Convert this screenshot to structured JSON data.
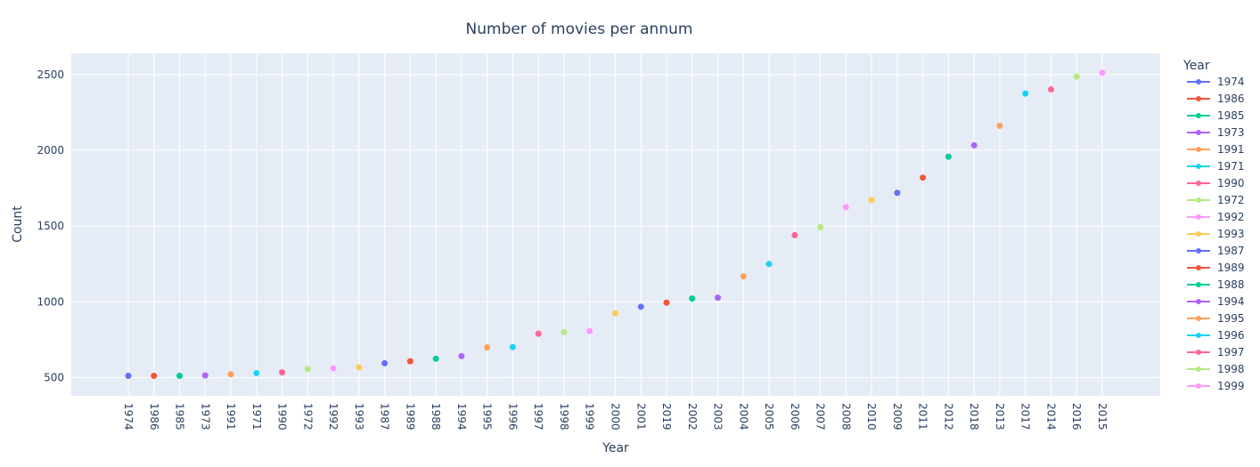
{
  "chart_data": {
    "type": "scatter",
    "title": "Number of movies per annum",
    "xlabel": "Year",
    "ylabel": "Count",
    "ylim": [
      380,
      2640
    ],
    "y_ticks": [
      500,
      1000,
      1500,
      2000,
      2500
    ],
    "grid": true,
    "legend": {
      "title": "Year",
      "placement": "right"
    },
    "colors": [
      "#636efa",
      "#EF553B",
      "#00cc96",
      "#ab63fa",
      "#FFA15A",
      "#19d3f3",
      "#FF6692",
      "#B6E880",
      "#FF97FF",
      "#FECB52"
    ],
    "points": [
      {
        "x": "1974",
        "y": 512
      },
      {
        "x": "1986",
        "y": 512
      },
      {
        "x": "1985",
        "y": 512
      },
      {
        "x": "1973",
        "y": 515
      },
      {
        "x": "1991",
        "y": 522
      },
      {
        "x": "1971",
        "y": 530
      },
      {
        "x": "1990",
        "y": 535
      },
      {
        "x": "1972",
        "y": 557
      },
      {
        "x": "1992",
        "y": 562
      },
      {
        "x": "1993",
        "y": 568
      },
      {
        "x": "1987",
        "y": 595
      },
      {
        "x": "1989",
        "y": 608
      },
      {
        "x": "1988",
        "y": 625
      },
      {
        "x": "1994",
        "y": 642
      },
      {
        "x": "1995",
        "y": 700
      },
      {
        "x": "1996",
        "y": 702
      },
      {
        "x": "1997",
        "y": 790
      },
      {
        "x": "1998",
        "y": 800
      },
      {
        "x": "1999",
        "y": 808
      },
      {
        "x": "2000",
        "y": 925
      },
      {
        "x": "2001",
        "y": 968
      },
      {
        "x": "2019",
        "y": 995
      },
      {
        "x": "2002",
        "y": 1022
      },
      {
        "x": "2003",
        "y": 1028
      },
      {
        "x": "2004",
        "y": 1168
      },
      {
        "x": "2005",
        "y": 1250
      },
      {
        "x": "2006",
        "y": 1440
      },
      {
        "x": "2007",
        "y": 1493
      },
      {
        "x": "2008",
        "y": 1625
      },
      {
        "x": "2010",
        "y": 1672
      },
      {
        "x": "2009",
        "y": 1720
      },
      {
        "x": "2011",
        "y": 1820
      },
      {
        "x": "2012",
        "y": 1958
      },
      {
        "x": "2018",
        "y": 2033
      },
      {
        "x": "2013",
        "y": 2162
      },
      {
        "x": "2017",
        "y": 2375
      },
      {
        "x": "2014",
        "y": 2402
      },
      {
        "x": "2016",
        "y": 2487
      },
      {
        "x": "2015",
        "y": 2512
      }
    ],
    "legend_entries": [
      "1974",
      "1986",
      "1985",
      "1973",
      "1991",
      "1971",
      "1990",
      "1972",
      "1992",
      "1993",
      "1987",
      "1989",
      "1988",
      "1994",
      "1995",
      "1996",
      "1997",
      "1998",
      "1999"
    ]
  }
}
